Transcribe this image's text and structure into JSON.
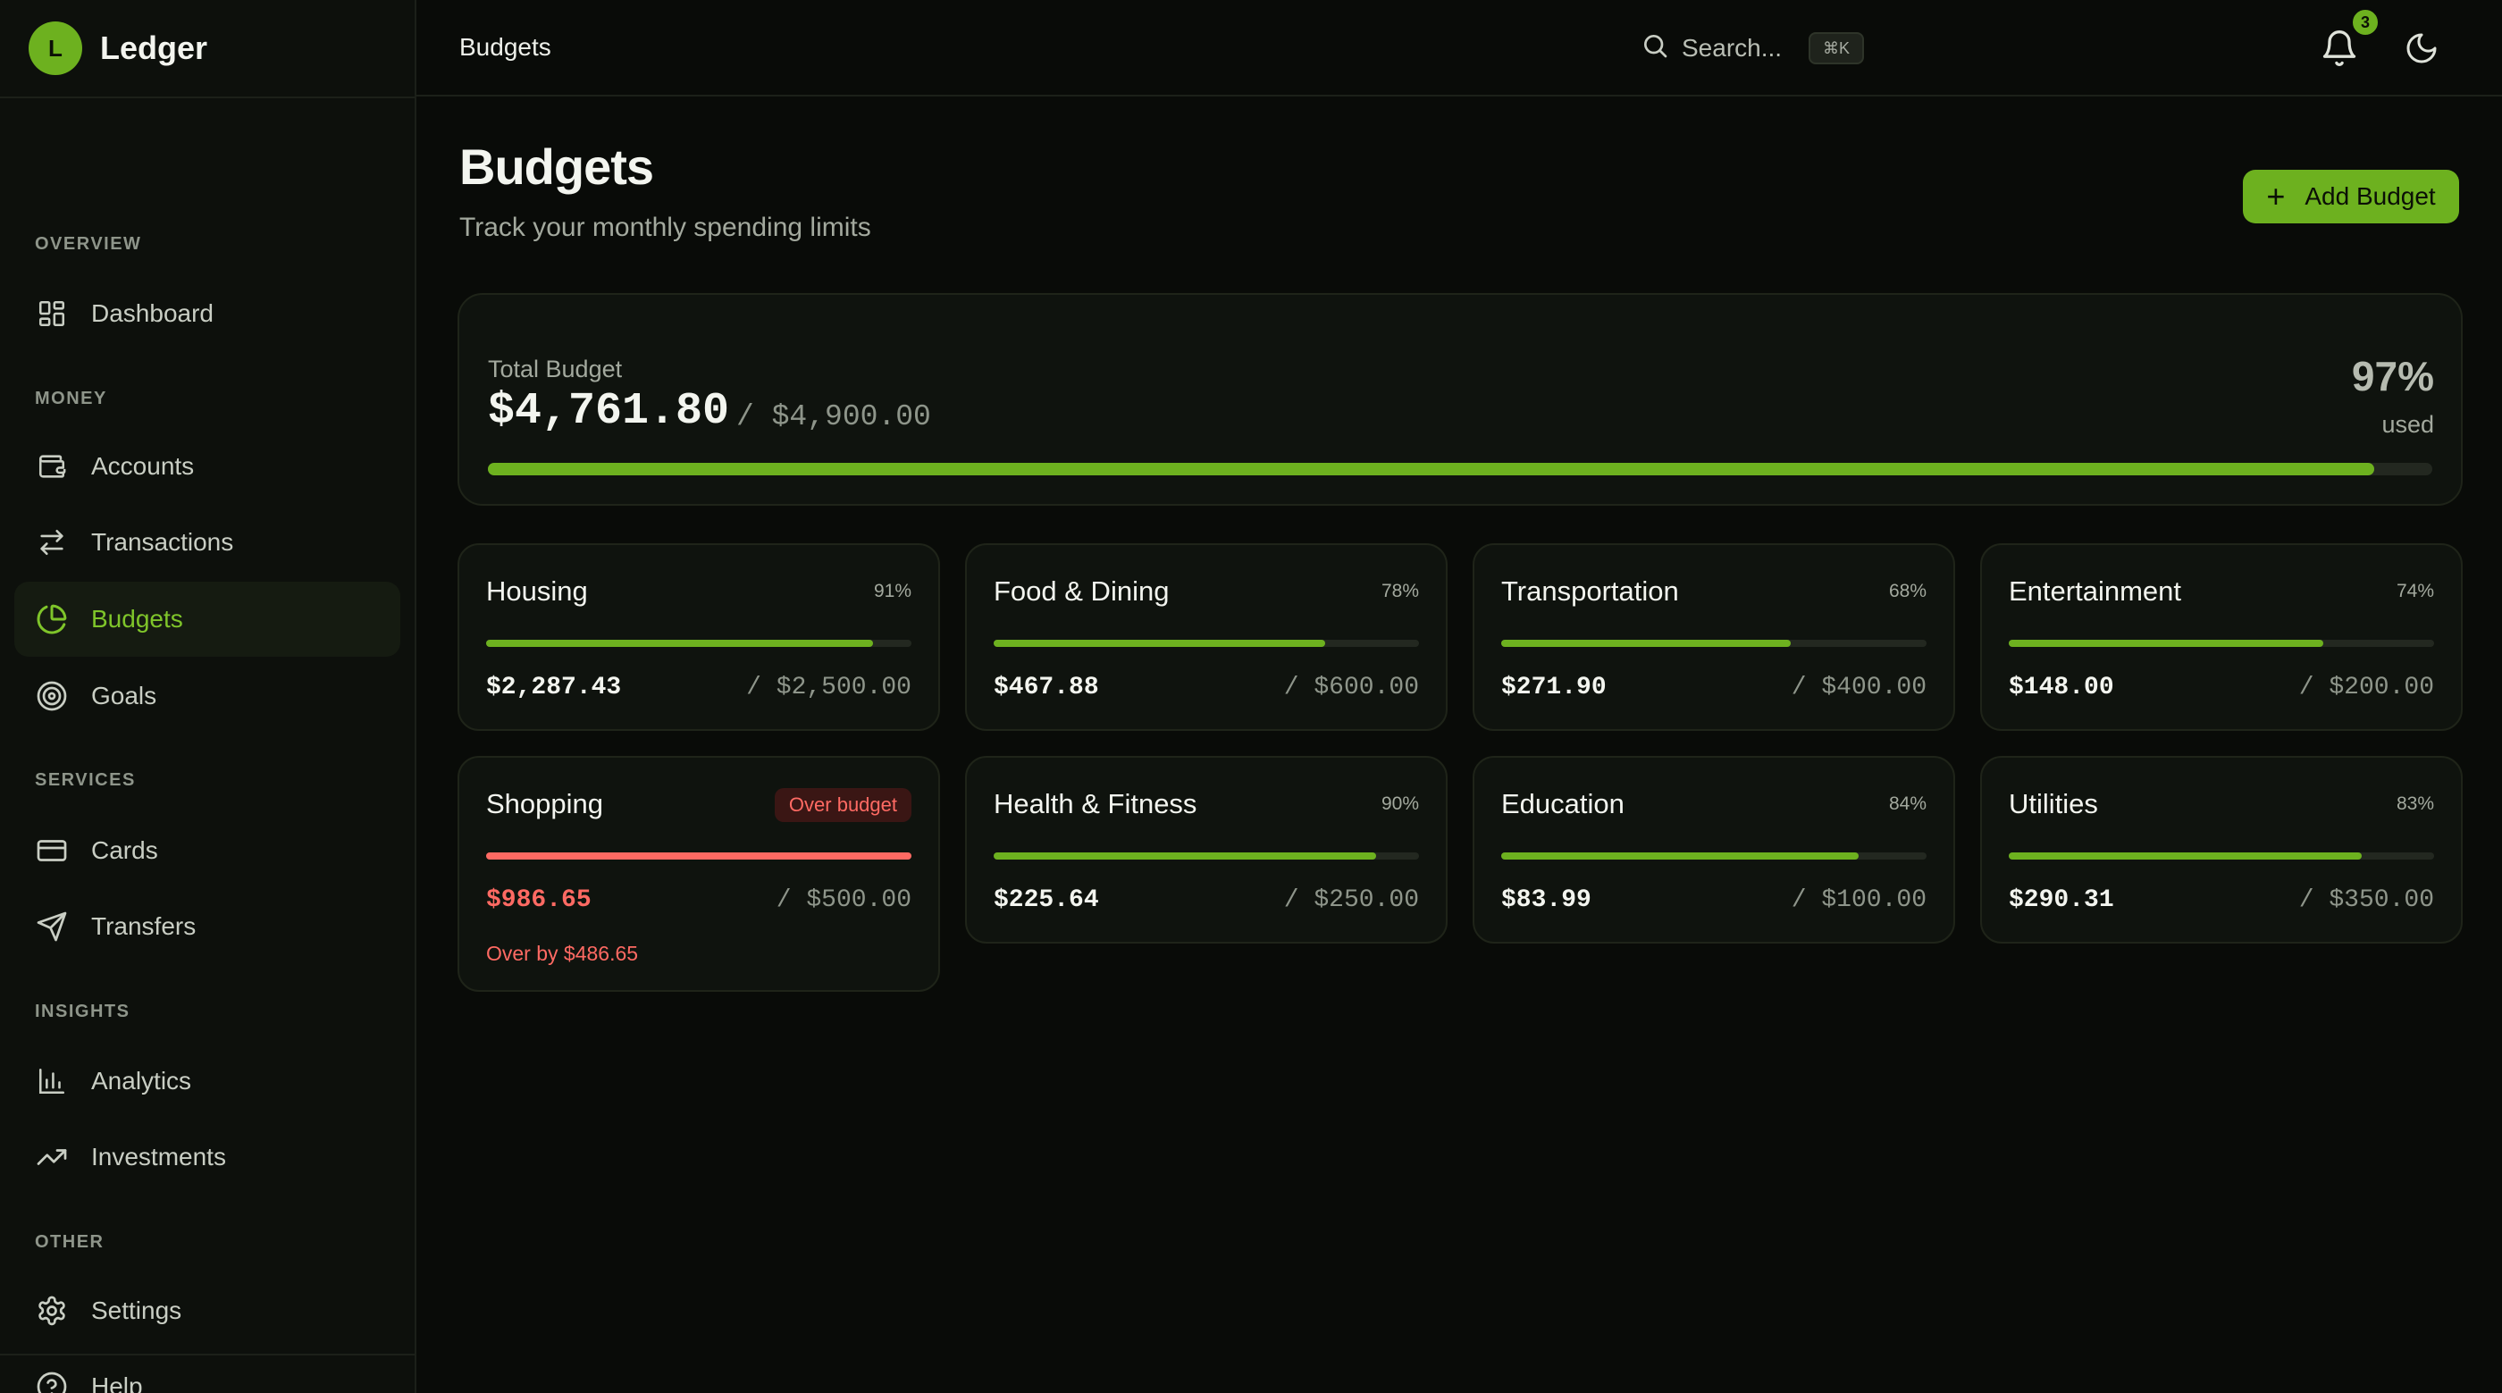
{
  "app": {
    "logo_letter": "L",
    "name": "Ledger"
  },
  "sidebar": {
    "sections": [
      {
        "title": "OVERVIEW",
        "items": [
          {
            "label": "Dashboard",
            "icon": "dashboard-icon"
          }
        ]
      },
      {
        "title": "MONEY",
        "items": [
          {
            "label": "Accounts",
            "icon": "wallet-icon"
          },
          {
            "label": "Transactions",
            "icon": "transfer-arrows-icon"
          },
          {
            "label": "Budgets",
            "icon": "pie-chart-icon",
            "active": true
          },
          {
            "label": "Goals",
            "icon": "target-icon"
          }
        ]
      },
      {
        "title": "SERVICES",
        "items": [
          {
            "label": "Cards",
            "icon": "credit-card-icon"
          },
          {
            "label": "Transfers",
            "icon": "send-icon"
          }
        ]
      },
      {
        "title": "INSIGHTS",
        "items": [
          {
            "label": "Analytics",
            "icon": "bar-chart-icon"
          },
          {
            "label": "Investments",
            "icon": "trending-up-icon"
          }
        ]
      },
      {
        "title": "OTHER",
        "items": [
          {
            "label": "Settings",
            "icon": "gear-icon"
          },
          {
            "label": "Help",
            "icon": "help-circle-icon"
          }
        ]
      }
    ]
  },
  "topbar": {
    "breadcrumb": "Budgets",
    "search_label": "Search...",
    "search_shortcut": "⌘K",
    "notification_count": "3"
  },
  "page": {
    "title": "Budgets",
    "subtitle": "Track your monthly spending limits",
    "add_button": "Add Budget"
  },
  "total": {
    "label": "Total Budget",
    "spent": "$4,761.80",
    "limit": "/ $4,900.00",
    "percent": "97%",
    "used_label": "used",
    "progress": 0.97
  },
  "budgets": [
    {
      "name": "Housing",
      "percent": "91%",
      "spent": "$2,287.43",
      "limit": "/ $2,500.00",
      "progress": 0.91
    },
    {
      "name": "Food & Dining",
      "percent": "78%",
      "spent": "$467.88",
      "limit": "/ $600.00",
      "progress": 0.78
    },
    {
      "name": "Transportation",
      "percent": "68%",
      "spent": "$271.90",
      "limit": "/ $400.00",
      "progress": 0.68
    },
    {
      "name": "Entertainment",
      "percent": "74%",
      "spent": "$148.00",
      "limit": "/ $200.00",
      "progress": 0.74
    },
    {
      "name": "Shopping",
      "badge": "Over budget",
      "spent": "$986.65",
      "limit": "/ $500.00",
      "progress": 1.0,
      "over": true,
      "note": "Over by $486.65"
    },
    {
      "name": "Health & Fitness",
      "percent": "90%",
      "spent": "$225.64",
      "limit": "/ $250.00",
      "progress": 0.9
    },
    {
      "name": "Education",
      "percent": "84%",
      "spent": "$83.99",
      "limit": "/ $100.00",
      "progress": 0.84
    },
    {
      "name": "Utilities",
      "percent": "83%",
      "spent": "$290.31",
      "limit": "/ $350.00",
      "progress": 0.83
    }
  ],
  "colors": {
    "accent": "#6db11f",
    "danger": "#ff6a63",
    "background": "#090b08",
    "card": "#0f130e"
  }
}
